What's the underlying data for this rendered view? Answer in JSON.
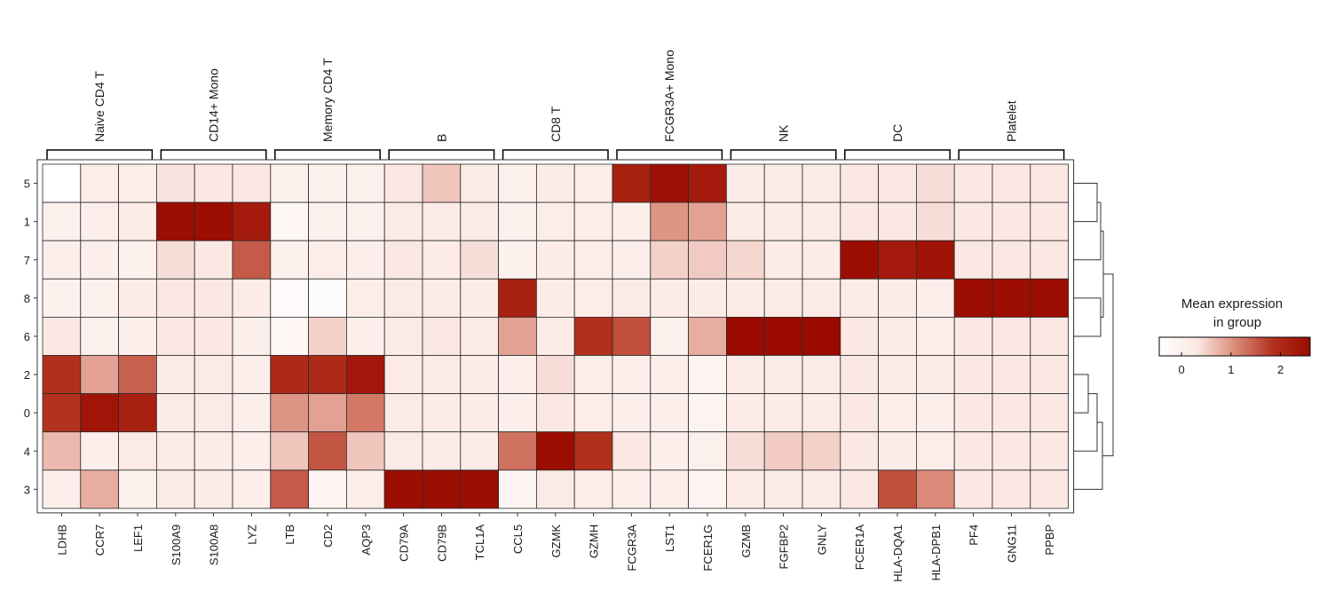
{
  "chart_data": {
    "type": "heatmap",
    "groups": [
      {
        "label": "Naive CD4 T",
        "genes": [
          "LDHB",
          "CCR7",
          "LEF1"
        ]
      },
      {
        "label": "CD14+ Mono",
        "genes": [
          "S100A9",
          "S100A8",
          "LYZ"
        ]
      },
      {
        "label": "Memory CD4 T",
        "genes": [
          "LTB",
          "CD2",
          "AQP3"
        ]
      },
      {
        "label": "B",
        "genes": [
          "CD79A",
          "CD79B",
          "TCL1A"
        ]
      },
      {
        "label": "CD8 T",
        "genes": [
          "CCL5",
          "GZMK",
          "GZMH"
        ]
      },
      {
        "label": "FCGR3A+ Mono",
        "genes": [
          "FCGR3A",
          "LST1",
          "FCER1G"
        ]
      },
      {
        "label": "NK",
        "genes": [
          "GZMB",
          "FGFBP2",
          "GNLY"
        ]
      },
      {
        "label": "DC",
        "genes": [
          "FCER1A",
          "HLA-DQA1",
          "HLA-DPB1"
        ]
      },
      {
        "label": "Platelet",
        "genes": [
          "PF4",
          "GNG11",
          "PPBP"
        ]
      }
    ],
    "columns": [
      "LDHB",
      "CCR7",
      "LEF1",
      "S100A9",
      "S100A8",
      "LYZ",
      "LTB",
      "CD2",
      "AQP3",
      "CD79A",
      "CD79B",
      "TCL1A",
      "CCL5",
      "GZMK",
      "GZMH",
      "FCGR3A",
      "LST1",
      "FCER1G",
      "GZMB",
      "FGFBP2",
      "GNLY",
      "FCER1A",
      "HLA-DQA1",
      "HLA-DPB1",
      "PF4",
      "GNG11",
      "PPBP"
    ],
    "rows": [
      "5",
      "1",
      "7",
      "8",
      "6",
      "2",
      "0",
      "4",
      "3"
    ],
    "values": [
      [
        -0.45,
        0.15,
        0.1,
        0.35,
        0.3,
        0.3,
        0.05,
        0.0,
        0.05,
        0.3,
        0.6,
        0.25,
        0.05,
        0.2,
        0.15,
        2.2,
        2.5,
        2.3,
        0.2,
        0.2,
        0.2,
        0.3,
        0.3,
        0.4,
        0.3,
        0.3,
        0.3
      ],
      [
        0.05,
        0.1,
        0.2,
        2.55,
        2.55,
        2.3,
        -0.2,
        0.0,
        0.05,
        0.25,
        0.2,
        0.2,
        0.05,
        0.15,
        0.15,
        0.1,
        1.0,
        0.9,
        0.2,
        0.2,
        0.2,
        0.3,
        0.3,
        0.4,
        0.3,
        0.3,
        0.3
      ],
      [
        0.1,
        0.1,
        0.0,
        0.4,
        0.3,
        1.5,
        0.0,
        0.15,
        0.1,
        0.3,
        0.2,
        0.4,
        0.0,
        0.2,
        0.15,
        0.1,
        0.5,
        0.55,
        0.45,
        0.2,
        0.2,
        2.55,
        2.3,
        2.45,
        0.3,
        0.3,
        0.3
      ],
      [
        0.0,
        0.0,
        0.2,
        0.3,
        0.3,
        0.2,
        -0.3,
        -0.35,
        0.15,
        0.25,
        0.2,
        0.2,
        2.2,
        0.2,
        0.15,
        0.25,
        0.2,
        0.2,
        0.2,
        0.2,
        0.2,
        0.2,
        0.2,
        0.1,
        2.55,
        2.55,
        2.55
      ],
      [
        0.3,
        0.05,
        0.1,
        0.3,
        0.3,
        0.1,
        -0.2,
        0.5,
        0.1,
        0.25,
        0.3,
        0.25,
        0.9,
        0.2,
        1.9,
        1.6,
        0.05,
        0.8,
        2.6,
        2.6,
        2.6,
        0.3,
        0.2,
        0.15,
        0.3,
        0.3,
        0.3
      ],
      [
        1.9,
        0.9,
        1.45,
        0.25,
        0.25,
        0.1,
        2.0,
        2.0,
        2.35,
        0.25,
        0.2,
        0.2,
        0.1,
        0.4,
        0.15,
        0.1,
        0.1,
        -0.1,
        0.2,
        0.2,
        0.2,
        0.3,
        0.2,
        0.2,
        0.3,
        0.3,
        0.3
      ],
      [
        1.85,
        2.4,
        2.2,
        0.25,
        0.25,
        0.1,
        1.0,
        0.9,
        1.25,
        0.25,
        0.2,
        0.2,
        0.1,
        0.3,
        0.15,
        0.1,
        0.1,
        -0.1,
        0.2,
        0.2,
        0.2,
        0.3,
        0.15,
        0.1,
        0.3,
        0.3,
        0.3
      ],
      [
        0.7,
        0.1,
        0.25,
        0.2,
        0.2,
        0.1,
        0.6,
        1.55,
        0.6,
        0.25,
        0.2,
        0.2,
        1.3,
        2.55,
        1.9,
        0.3,
        0.1,
        0.05,
        0.4,
        0.55,
        0.5,
        0.3,
        0.2,
        0.15,
        0.3,
        0.3,
        0.3
      ],
      [
        0.1,
        0.8,
        0.05,
        0.2,
        0.2,
        0.1,
        1.5,
        -0.1,
        0.15,
        2.55,
        2.55,
        2.55,
        -0.1,
        0.25,
        0.15,
        0.1,
        0.1,
        -0.1,
        0.2,
        0.2,
        0.2,
        0.3,
        1.6,
        1.1,
        0.3,
        0.3,
        0.3
      ]
    ],
    "dendrogram": {
      "order": [
        "5",
        "1",
        "7",
        "8",
        "6",
        "2",
        "0",
        "4",
        "3"
      ]
    },
    "colorbar": {
      "title": "Mean expression\nin group",
      "title_lines": [
        "Mean expression",
        "in group"
      ],
      "vmin": -0.45,
      "vmax": 2.6,
      "ticks": [
        0,
        1,
        2
      ],
      "colors": [
        "#ffffff",
        "#fbe8e3",
        "#dc8c7b",
        "#b3331f",
        "#9a0a00"
      ]
    },
    "grid": true,
    "legend_position": "right"
  }
}
